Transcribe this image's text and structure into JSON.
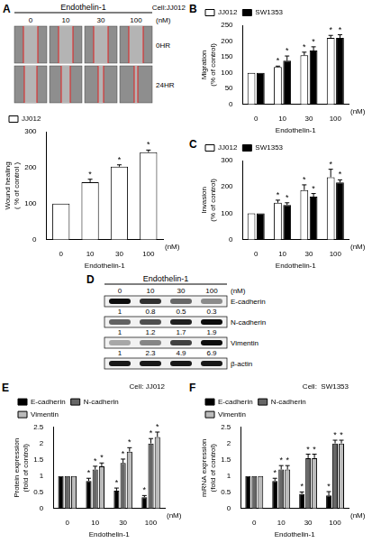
{
  "chart_data": [
    {
      "panel": "A",
      "type": "bar",
      "x_label": "Endothelin-1",
      "x_unit": "(nM)",
      "y_label": "Wound healing ( % of control )",
      "categories": [
        "0",
        "10",
        "30",
        "100"
      ],
      "series": [
        {
          "name": "JJ012",
          "color": "#ffffff",
          "values": [
            100,
            160,
            203,
            243
          ],
          "errors": [
            0,
            8,
            5,
            6
          ],
          "significant": [
            false,
            true,
            true,
            true
          ]
        }
      ],
      "sig_label": "*",
      "ylim": [
        0,
        300
      ],
      "yticks": [
        0,
        100,
        200,
        300
      ],
      "grid": false,
      "legend": "top"
    },
    {
      "panel": "B",
      "type": "bar",
      "x_label": "Endothelin-1",
      "x_unit": "(nM)",
      "y_label": "Migration (% of control)",
      "categories": [
        "0",
        "10",
        "30",
        "100"
      ],
      "series": [
        {
          "name": "JJ012",
          "color": "#ffffff",
          "values": [
            100,
            118,
            155,
            210
          ],
          "errors": [
            0,
            3,
            10,
            8
          ],
          "significant": [
            false,
            true,
            true,
            true
          ]
        },
        {
          "name": "SW1353",
          "color": "#000000",
          "values": [
            100,
            138,
            170,
            210
          ],
          "errors": [
            0,
            15,
            12,
            10
          ],
          "significant": [
            false,
            true,
            true,
            true
          ]
        }
      ],
      "sig_label": "*",
      "ylim": [
        0,
        250
      ],
      "yticks": [
        0,
        50,
        100,
        150,
        200,
        250
      ],
      "grid": false,
      "legend": "top"
    },
    {
      "panel": "C",
      "type": "bar",
      "x_label": "Endothelin-1",
      "x_unit": "(nM)",
      "y_label": "Invasion (% of control)",
      "categories": [
        "0",
        "10",
        "30",
        "100"
      ],
      "series": [
        {
          "name": "JJ012",
          "color": "#ffffff",
          "values": [
            100,
            140,
            188,
            237
          ],
          "errors": [
            0,
            10,
            20,
            30
          ],
          "significant": [
            false,
            true,
            true,
            true
          ]
        },
        {
          "name": "SW1353",
          "color": "#000000",
          "values": [
            100,
            132,
            163,
            217
          ],
          "errors": [
            0,
            8,
            12,
            10
          ],
          "significant": [
            false,
            true,
            true,
            true
          ]
        }
      ],
      "sig_label": "*",
      "ylim": [
        0,
        300
      ],
      "yticks": [
        0,
        100,
        200,
        300
      ],
      "grid": false,
      "legend": "top"
    },
    {
      "panel": "E",
      "type": "bar",
      "title": "Cell: JJ012",
      "x_label": "Endothelin-1",
      "x_unit": "(nM)",
      "y_label": "Protein expression (fold of control)",
      "categories": [
        "0",
        "10",
        "30",
        "100"
      ],
      "series": [
        {
          "name": "E-cadherin",
          "color": "#000000",
          "values": [
            1,
            0.85,
            0.55,
            0.35
          ],
          "errors": [
            0,
            0.08,
            0.08,
            0.05
          ],
          "significant": [
            false,
            true,
            true,
            true
          ]
        },
        {
          "name": "N-cadherin",
          "color": "#666666",
          "values": [
            1,
            1.2,
            1.4,
            2.0
          ],
          "errors": [
            0,
            0.1,
            0.12,
            0.15
          ],
          "significant": [
            false,
            true,
            true,
            true
          ]
        },
        {
          "name": "Vimentin",
          "color": "#bbbbbb",
          "values": [
            1,
            1.3,
            1.75,
            2.2
          ],
          "errors": [
            0,
            0.1,
            0.12,
            0.15
          ],
          "significant": [
            false,
            true,
            true,
            true
          ]
        }
      ],
      "sig_label": "*",
      "ylim": [
        0,
        2.5
      ],
      "yticks": [
        0,
        0.5,
        1,
        1.5,
        2,
        2.5
      ],
      "grid": false,
      "legend": "top"
    },
    {
      "panel": "F",
      "type": "bar",
      "title": "Cell:  SW1353",
      "x_label": "Endothelin-1",
      "x_unit": "(nM)",
      "y_label": "mRNA expression (fold of control)",
      "categories": [
        "0",
        "10",
        "30",
        "100"
      ],
      "series": [
        {
          "name": "E-cadherin",
          "color": "#000000",
          "values": [
            1,
            0.85,
            0.45,
            0.4
          ],
          "errors": [
            0,
            0.08,
            0.06,
            0.12
          ],
          "significant": [
            false,
            true,
            true,
            true
          ]
        },
        {
          "name": "N-cadherin",
          "color": "#666666",
          "values": [
            1,
            1.2,
            1.55,
            2.0
          ],
          "errors": [
            0,
            0.12,
            0.12,
            0.1
          ],
          "significant": [
            false,
            true,
            true,
            true
          ]
        },
        {
          "name": "Vimentin",
          "color": "#bbbbbb",
          "values": [
            1,
            1.2,
            1.55,
            2.0
          ],
          "errors": [
            0,
            0.12,
            0.12,
            0.1
          ],
          "significant": [
            false,
            true,
            true,
            true
          ]
        }
      ],
      "sig_label": "*",
      "ylim": [
        0,
        2.5
      ],
      "yticks": [
        0,
        0.5,
        1,
        1.5,
        2,
        2.5
      ],
      "grid": false,
      "legend": "top"
    }
  ],
  "wound_images": {
    "panel": "A",
    "title": "Endothelin-1",
    "columns": [
      "0",
      "10",
      "30",
      "100"
    ],
    "unit": "(nM)",
    "cell": "Cell:JJ012",
    "rows": [
      "0HR",
      "24HR"
    ]
  },
  "blot": {
    "panel": "D",
    "title": "Endothelin-1",
    "lanes": [
      "0",
      "10",
      "30",
      "100"
    ],
    "unit": "(nM)",
    "rows": [
      {
        "name": "E-cadherin",
        "values": [
          1,
          0.8,
          0.5,
          0.3
        ]
      },
      {
        "name": "N-cadherin",
        "values": [
          1,
          1.2,
          1.7,
          1.9
        ]
      },
      {
        "name": "Vimentin",
        "values": [
          1,
          2.3,
          4.9,
          6.9
        ]
      },
      {
        "name": "β-actin"
      }
    ]
  }
}
